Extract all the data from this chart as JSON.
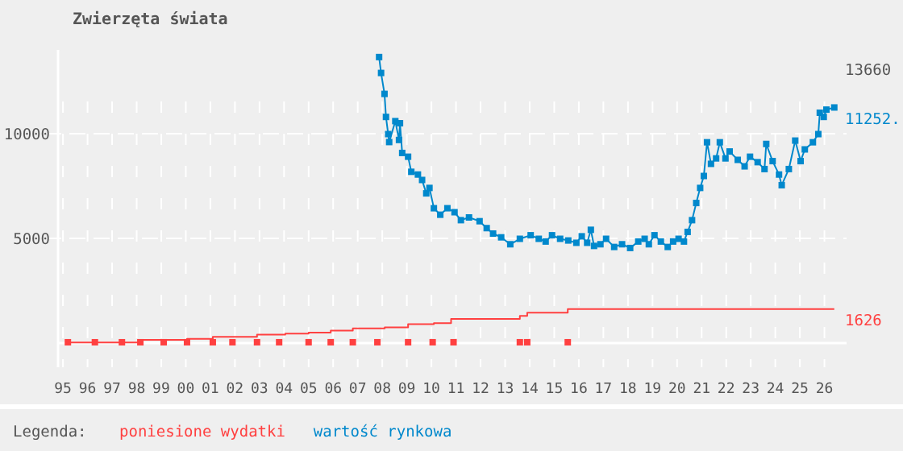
{
  "chart_data": {
    "type": "line",
    "title": "Zwierzęta świata",
    "legend_title": "Legenda:",
    "legend": "bottom",
    "grid": true,
    "xlim": [
      1994.8,
      2026.9
    ],
    "ylim": [
      0,
      14000
    ],
    "xticks": [
      {
        "value": 1995,
        "label": "95"
      },
      {
        "value": 1996,
        "label": "96"
      },
      {
        "value": 1997,
        "label": "97"
      },
      {
        "value": 1998,
        "label": "98"
      },
      {
        "value": 1999,
        "label": "99"
      },
      {
        "value": 2000,
        "label": "00"
      },
      {
        "value": 2001,
        "label": "01"
      },
      {
        "value": 2002,
        "label": "02"
      },
      {
        "value": 2003,
        "label": "03"
      },
      {
        "value": 2004,
        "label": "04"
      },
      {
        "value": 2005,
        "label": "05"
      },
      {
        "value": 2006,
        "label": "06"
      },
      {
        "value": 2007,
        "label": "07"
      },
      {
        "value": 2008,
        "label": "08"
      },
      {
        "value": 2009,
        "label": "09"
      },
      {
        "value": 2010,
        "label": "10"
      },
      {
        "value": 2011,
        "label": "11"
      },
      {
        "value": 2012,
        "label": "12"
      },
      {
        "value": 2013,
        "label": "13"
      },
      {
        "value": 2014,
        "label": "14"
      },
      {
        "value": 2015,
        "label": "15"
      },
      {
        "value": 2016,
        "label": "16"
      },
      {
        "value": 2017,
        "label": "17"
      },
      {
        "value": 2018,
        "label": "18"
      },
      {
        "value": 2019,
        "label": "19"
      },
      {
        "value": 2020,
        "label": "20"
      },
      {
        "value": 2021,
        "label": "21"
      },
      {
        "value": 2022,
        "label": "22"
      },
      {
        "value": 2023,
        "label": "23"
      },
      {
        "value": 2024,
        "label": "24"
      },
      {
        "value": 2025,
        "label": "25"
      },
      {
        "value": 2026,
        "label": "26"
      }
    ],
    "yticks": [
      5000,
      10000
    ],
    "annotations": [
      "13660"
    ],
    "series": [
      {
        "name": "poniesione wydatki",
        "type": "step",
        "color": "#ff4040",
        "marker": "none",
        "x": [
          1995.2,
          1998.15,
          2000.05,
          2001.1,
          2002.9,
          2004.05,
          2005.0,
          2005.9,
          2006.8,
          2008.1,
          2009.05,
          2010.1,
          2010.8,
          2013.6,
          2013.9,
          2015.55,
          2026.4
        ],
        "values": [
          30,
          150,
          200,
          300,
          400,
          450,
          500,
          600,
          700,
          750,
          900,
          950,
          1150,
          1300,
          1450,
          1626,
          1626
        ],
        "value_labels": [
          null,
          null,
          null,
          null,
          null,
          null,
          null,
          null,
          null,
          null,
          null,
          null,
          null,
          null,
          null,
          null,
          "1626"
        ]
      },
      {
        "name": "wartość rynkowa",
        "color": "#0088cc",
        "marker": "square",
        "x": [
          2007.87,
          2007.95,
          2008.09,
          2008.15,
          2008.24,
          2008.28,
          2008.53,
          2008.68,
          2008.72,
          2008.81,
          2009.05,
          2009.18,
          2009.45,
          2009.62,
          2009.79,
          2009.92,
          2010.1,
          2010.36,
          2010.65,
          2010.94,
          2011.2,
          2011.53,
          2011.96,
          2012.25,
          2012.51,
          2012.84,
          2013.21,
          2013.6,
          2014.04,
          2014.37,
          2014.65,
          2014.91,
          2015.24,
          2015.57,
          2015.9,
          2016.12,
          2016.34,
          2016.49,
          2016.62,
          2016.88,
          2017.11,
          2017.44,
          2017.76,
          2018.09,
          2018.42,
          2018.68,
          2018.85,
          2019.08,
          2019.34,
          2019.62,
          2019.84,
          2020.06,
          2020.28,
          2020.43,
          2020.61,
          2020.78,
          2020.94,
          2021.09,
          2021.22,
          2021.38,
          2021.59,
          2021.74,
          2021.97,
          2022.14,
          2022.47,
          2022.75,
          2022.97,
          2023.28,
          2023.56,
          2023.63,
          2023.89,
          2024.15,
          2024.26,
          2024.55,
          2024.81,
          2025.03,
          2025.2,
          2025.53,
          2025.75,
          2025.81,
          2025.97,
          2026.08,
          2026.4
        ],
        "values": [
          13660,
          12900,
          11900,
          10800,
          9980,
          9600,
          10600,
          9700,
          10500,
          9080,
          8900,
          8180,
          8050,
          7790,
          7150,
          7410,
          6440,
          6130,
          6440,
          6250,
          5870,
          6000,
          5820,
          5490,
          5230,
          5050,
          4720,
          4980,
          5150,
          4980,
          4850,
          5150,
          4980,
          4900,
          4790,
          5100,
          4790,
          5410,
          4640,
          4720,
          4980,
          4590,
          4720,
          4540,
          4850,
          4980,
          4720,
          5150,
          4850,
          4590,
          4850,
          4980,
          4850,
          5310,
          5870,
          6690,
          7410,
          7980,
          9590,
          8560,
          8820,
          9590,
          8820,
          9150,
          8750,
          8440,
          8900,
          8640,
          8310,
          9510,
          8690,
          8050,
          7540,
          8310,
          9670,
          8690,
          9250,
          9590,
          9980,
          11000,
          10800,
          11150,
          11252
        ],
        "value_labels": [
          null,
          null,
          null,
          null,
          null,
          null,
          null,
          null,
          null,
          null,
          null,
          null,
          null,
          null,
          null,
          null,
          null,
          null,
          null,
          null,
          null,
          null,
          null,
          null,
          null,
          null,
          null,
          null,
          null,
          null,
          null,
          null,
          null,
          null,
          null,
          null,
          null,
          null,
          null,
          null,
          null,
          null,
          null,
          null,
          null,
          null,
          null,
          null,
          null,
          null,
          null,
          null,
          null,
          null,
          null,
          null,
          null,
          null,
          null,
          null,
          null,
          null,
          null,
          null,
          null,
          null,
          null,
          null,
          null,
          null,
          null,
          null,
          null,
          null,
          null,
          null,
          null,
          null,
          null,
          null,
          null,
          null,
          "11252."
        ]
      },
      {
        "type": "scatter",
        "color": "#ff4040",
        "marker": "square",
        "x": [
          1995.2,
          1996.3,
          1997.4,
          1998.15,
          1999.1,
          2000.05,
          2001.1,
          2001.9,
          2002.9,
          2003.8,
          2005.0,
          2005.9,
          2006.8,
          2007.8,
          2009.05,
          2010.05,
          2010.9,
          2013.6,
          2013.9,
          2015.55
        ],
        "values": [
          40,
          40,
          40,
          40,
          40,
          40,
          40,
          40,
          40,
          40,
          40,
          40,
          40,
          40,
          40,
          40,
          40,
          40,
          40,
          40
        ]
      }
    ]
  }
}
